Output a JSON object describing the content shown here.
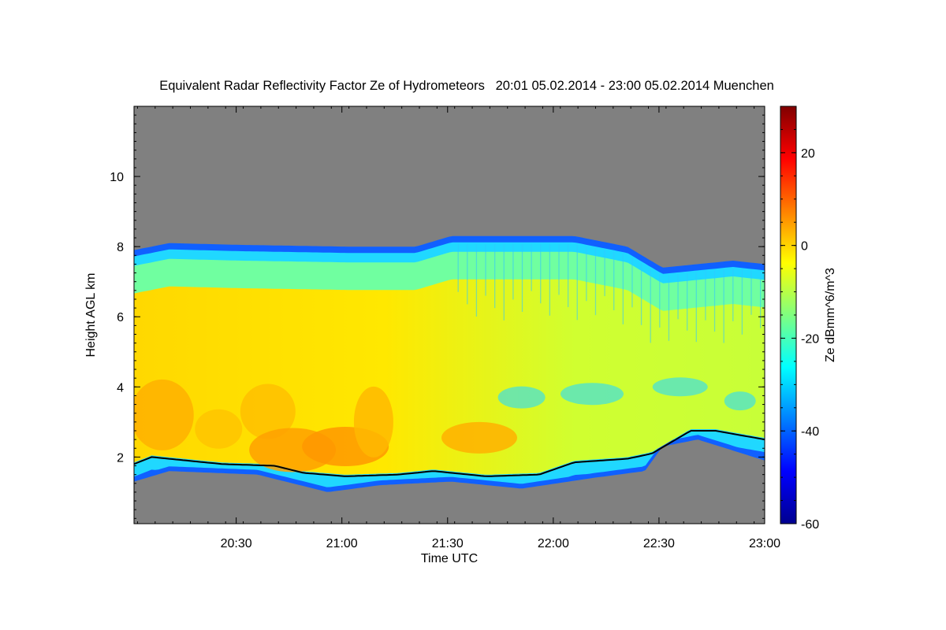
{
  "chart_data": {
    "type": "heatmap",
    "title": "Equivalent Radar Reflectivity Factor Ze of Hydrometeors   20:01 05.02.2014 - 23:00 05.02.2014 Muenchen",
    "xlabel": "Time UTC",
    "ylabel": "Height AGL km",
    "xlim": [
      "20:01",
      "23:00"
    ],
    "ylim": [
      0.1,
      12.0
    ],
    "x_ticks": [
      {
        "label": "20:30",
        "minutes": 29
      },
      {
        "label": "21:00",
        "minutes": 59
      },
      {
        "label": "21:30",
        "minutes": 89
      },
      {
        "label": "22:00",
        "minutes": 119
      },
      {
        "label": "22:30",
        "minutes": 149
      },
      {
        "label": "23:00",
        "minutes": 179
      }
    ],
    "y_ticks": [
      2,
      4,
      6,
      8,
      10
    ],
    "colorbar": {
      "label": "Ze dBmm^6/m^3",
      "range": [
        -60,
        30
      ],
      "ticks": [
        -60,
        -40,
        -20,
        0,
        20
      ],
      "colormap": "jet"
    },
    "no_signal_color": "#808080",
    "echo_top_km": [
      {
        "t": 0,
        "h": 7.9
      },
      {
        "t": 10,
        "h": 8.1
      },
      {
        "t": 30,
        "h": 8.05
      },
      {
        "t": 60,
        "h": 8.0
      },
      {
        "t": 80,
        "h": 8.0
      },
      {
        "t": 90,
        "h": 8.3
      },
      {
        "t": 110,
        "h": 8.3
      },
      {
        "t": 125,
        "h": 8.3
      },
      {
        "t": 140,
        "h": 8.0
      },
      {
        "t": 150,
        "h": 7.4
      },
      {
        "t": 160,
        "h": 7.5
      },
      {
        "t": 170,
        "h": 7.6
      },
      {
        "t": 179,
        "h": 7.5
      }
    ],
    "cloud_base_km": [
      {
        "t": 0,
        "h": 1.8
      },
      {
        "t": 5,
        "h": 2.0
      },
      {
        "t": 15,
        "h": 1.9
      },
      {
        "t": 25,
        "h": 1.8
      },
      {
        "t": 40,
        "h": 1.75
      },
      {
        "t": 48,
        "h": 1.55
      },
      {
        "t": 60,
        "h": 1.45
      },
      {
        "t": 75,
        "h": 1.5
      },
      {
        "t": 85,
        "h": 1.6
      },
      {
        "t": 100,
        "h": 1.45
      },
      {
        "t": 115,
        "h": 1.5
      },
      {
        "t": 125,
        "h": 1.85
      },
      {
        "t": 140,
        "h": 1.95
      },
      {
        "t": 147,
        "h": 2.1
      },
      {
        "t": 158,
        "h": 2.75
      },
      {
        "t": 165,
        "h": 2.75
      },
      {
        "t": 179,
        "h": 2.5
      }
    ],
    "echo_bottom_km": [
      {
        "t": 0,
        "h": 1.3
      },
      {
        "t": 10,
        "h": 1.6
      },
      {
        "t": 35,
        "h": 1.5
      },
      {
        "t": 55,
        "h": 1.0
      },
      {
        "t": 70,
        "h": 1.2
      },
      {
        "t": 90,
        "h": 1.3
      },
      {
        "t": 110,
        "h": 1.1
      },
      {
        "t": 130,
        "h": 1.4
      },
      {
        "t": 145,
        "h": 1.6
      },
      {
        "t": 150,
        "h": 2.3
      },
      {
        "t": 160,
        "h": 2.5
      },
      {
        "t": 179,
        "h": 1.9
      }
    ]
  }
}
